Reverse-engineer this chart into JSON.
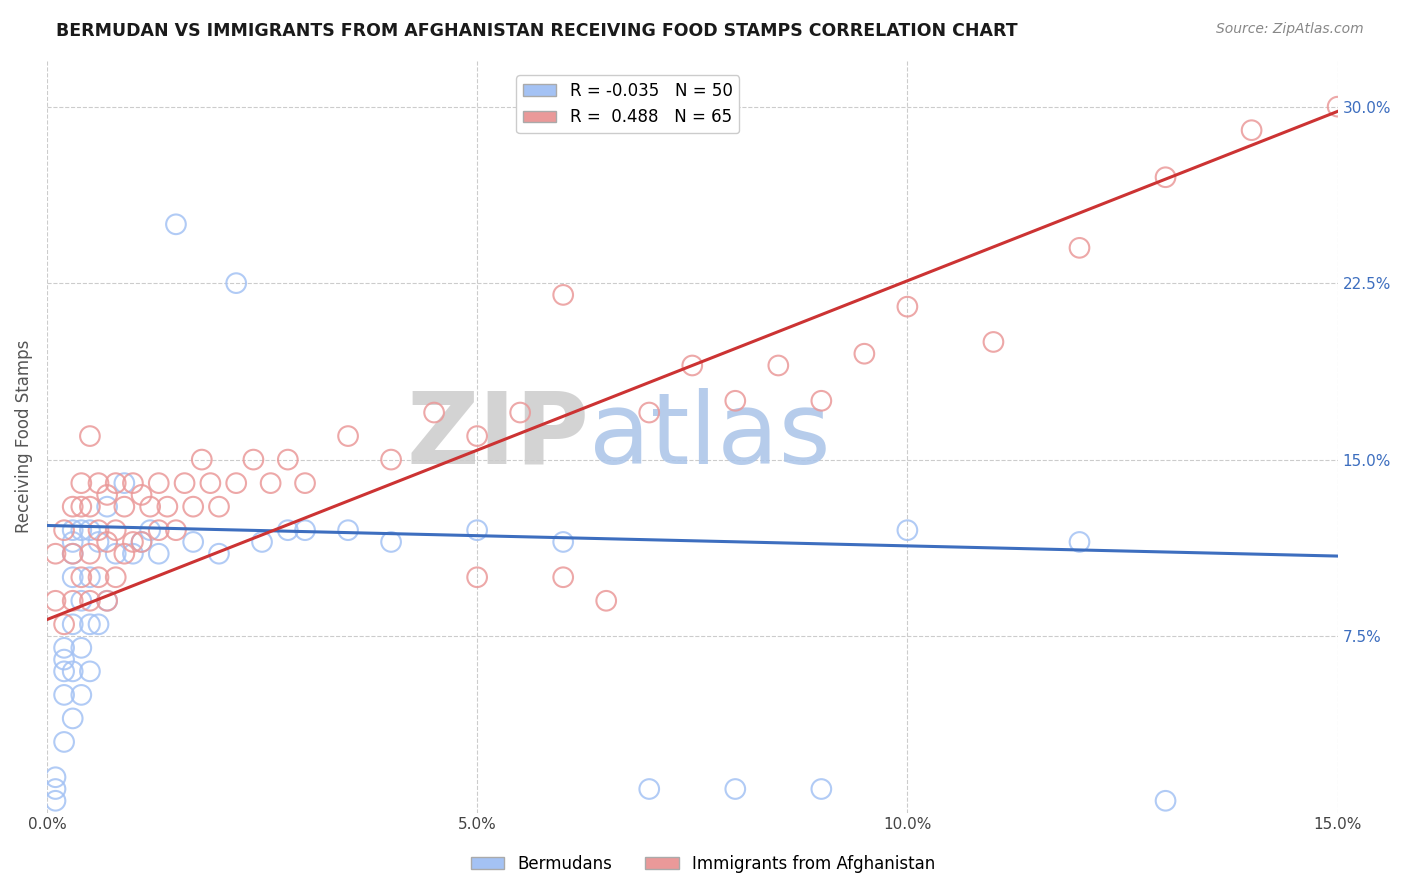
{
  "title": "BERMUDAN VS IMMIGRANTS FROM AFGHANISTAN RECEIVING FOOD STAMPS CORRELATION CHART",
  "source": "Source: ZipAtlas.com",
  "ylabel": "Receiving Food Stamps",
  "legend_labels": [
    "Bermudans",
    "Immigrants from Afghanistan"
  ],
  "r_blue": -0.035,
  "n_blue": 50,
  "r_pink": 0.488,
  "n_pink": 65,
  "xlim": [
    0.0,
    0.15
  ],
  "ylim": [
    0.0,
    0.32
  ],
  "xticks": [
    0.0,
    0.05,
    0.1,
    0.15
  ],
  "xticklabels": [
    "0.0%",
    "5.0%",
    "10.0%",
    "15.0%"
  ],
  "yticks_right": [
    0.075,
    0.15,
    0.225,
    0.3
  ],
  "yticklabels_right": [
    "7.5%",
    "15.0%",
    "22.5%",
    "30.0%"
  ],
  "blue_color": "#a4c2f4",
  "pink_color": "#ea9999",
  "blue_line_color": "#3d6ebf",
  "pink_line_color": "#cc3333",
  "watermark_zip": "ZIP",
  "watermark_atlas": "atlas",
  "watermark_zip_color": "#cccccc",
  "watermark_atlas_color": "#aac4e8",
  "background_color": "#ffffff",
  "grid_color": "#cccccc",
  "blue_scatter_x": [
    0.001,
    0.001,
    0.001,
    0.002,
    0.002,
    0.002,
    0.002,
    0.002,
    0.003,
    0.003,
    0.003,
    0.003,
    0.003,
    0.003,
    0.003,
    0.004,
    0.004,
    0.004,
    0.004,
    0.005,
    0.005,
    0.005,
    0.005,
    0.006,
    0.006,
    0.007,
    0.007,
    0.008,
    0.009,
    0.01,
    0.011,
    0.012,
    0.013,
    0.015,
    0.017,
    0.02,
    0.022,
    0.025,
    0.028,
    0.03,
    0.035,
    0.04,
    0.05,
    0.06,
    0.07,
    0.08,
    0.09,
    0.1,
    0.12,
    0.13
  ],
  "blue_scatter_y": [
    0.005,
    0.01,
    0.015,
    0.03,
    0.05,
    0.06,
    0.065,
    0.07,
    0.04,
    0.06,
    0.08,
    0.1,
    0.11,
    0.115,
    0.12,
    0.05,
    0.07,
    0.09,
    0.12,
    0.06,
    0.08,
    0.1,
    0.12,
    0.08,
    0.115,
    0.09,
    0.13,
    0.11,
    0.14,
    0.11,
    0.115,
    0.12,
    0.11,
    0.25,
    0.115,
    0.11,
    0.225,
    0.115,
    0.12,
    0.12,
    0.12,
    0.115,
    0.12,
    0.115,
    0.01,
    0.01,
    0.01,
    0.12,
    0.115,
    0.005
  ],
  "pink_scatter_x": [
    0.001,
    0.001,
    0.002,
    0.002,
    0.003,
    0.003,
    0.003,
    0.004,
    0.004,
    0.004,
    0.005,
    0.005,
    0.005,
    0.005,
    0.006,
    0.006,
    0.006,
    0.007,
    0.007,
    0.007,
    0.008,
    0.008,
    0.008,
    0.009,
    0.009,
    0.01,
    0.01,
    0.011,
    0.011,
    0.012,
    0.013,
    0.013,
    0.014,
    0.015,
    0.016,
    0.017,
    0.018,
    0.019,
    0.02,
    0.022,
    0.024,
    0.026,
    0.028,
    0.03,
    0.035,
    0.04,
    0.045,
    0.05,
    0.055,
    0.06,
    0.07,
    0.075,
    0.08,
    0.085,
    0.09,
    0.095,
    0.1,
    0.11,
    0.12,
    0.13,
    0.14,
    0.15,
    0.06,
    0.065,
    0.05
  ],
  "pink_scatter_y": [
    0.09,
    0.11,
    0.08,
    0.12,
    0.09,
    0.11,
    0.13,
    0.1,
    0.13,
    0.14,
    0.09,
    0.11,
    0.13,
    0.16,
    0.1,
    0.12,
    0.14,
    0.09,
    0.115,
    0.135,
    0.1,
    0.12,
    0.14,
    0.11,
    0.13,
    0.115,
    0.14,
    0.115,
    0.135,
    0.13,
    0.12,
    0.14,
    0.13,
    0.12,
    0.14,
    0.13,
    0.15,
    0.14,
    0.13,
    0.14,
    0.15,
    0.14,
    0.15,
    0.14,
    0.16,
    0.15,
    0.17,
    0.16,
    0.17,
    0.22,
    0.17,
    0.19,
    0.175,
    0.19,
    0.175,
    0.195,
    0.215,
    0.2,
    0.24,
    0.27,
    0.29,
    0.3,
    0.1,
    0.09,
    0.1
  ],
  "blue_line_x0": 0.0,
  "blue_line_y0": 0.122,
  "blue_line_x1": 0.15,
  "blue_line_y1": 0.109,
  "pink_line_x0": 0.0,
  "pink_line_y0": 0.082,
  "pink_line_x1": 0.15,
  "pink_line_y1": 0.298
}
